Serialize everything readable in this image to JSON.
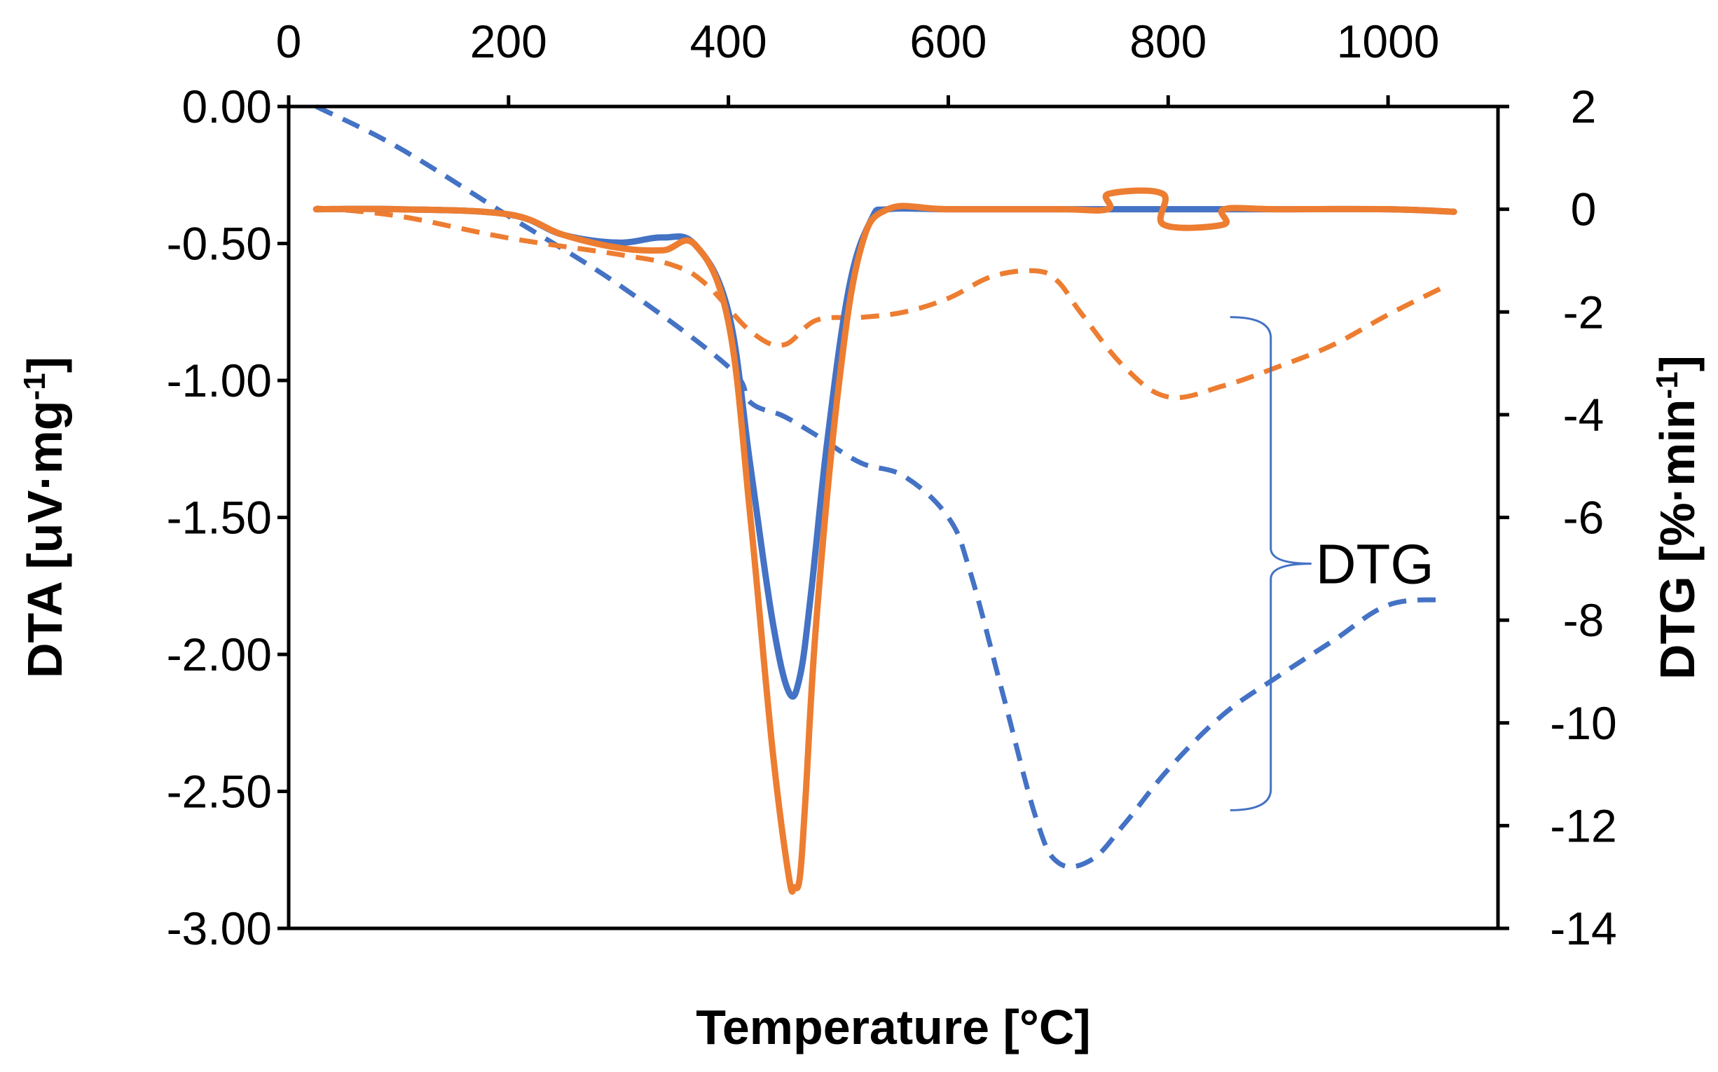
{
  "chart_data": {
    "type": "line",
    "xlabel": "Temperature [°C]",
    "ylabel_left": "DTA [uV·mg-1]",
    "ylabel_left_parts": {
      "main": "DTA [uV·mg",
      "sup": "-1",
      "end": "]"
    },
    "ylabel_right": "DTG [%·min-1]",
    "ylabel_right_parts": {
      "main": "DTG [%·min",
      "sup": "-1",
      "end": "]"
    },
    "xlim": [
      0,
      1100
    ],
    "ylim_left": [
      -3.0,
      0.0
    ],
    "ylim_right": [
      -14,
      2
    ],
    "x_ticks": [
      0,
      200,
      400,
      600,
      800,
      1000
    ],
    "x_tick_labels": [
      "0",
      "200",
      "400",
      "600",
      "800",
      "1000"
    ],
    "y_left_ticks": [
      0.0,
      -0.5,
      -1.0,
      -1.5,
      -2.0,
      -2.5,
      -3.0
    ],
    "y_left_tick_labels": [
      "0.00",
      "-0.50",
      "-1.00",
      "-1.50",
      "-2.00",
      "-2.50",
      "-3.00"
    ],
    "y_right_ticks": [
      2,
      0,
      -2,
      -4,
      -6,
      -8,
      -10,
      -12,
      -14
    ],
    "y_right_tick_labels": [
      "2",
      "0",
      "-2",
      "-4",
      "-6",
      "-8",
      "-10",
      "-12",
      "-14"
    ],
    "grid": false,
    "annotations": [
      {
        "text": "DTG",
        "type": "brace",
        "y_right_range": [
          -11.7,
          -2.1
        ],
        "x": 850
      }
    ],
    "colors": {
      "blue": "#4472C4",
      "orange": "#ED7D31"
    },
    "series": [
      {
        "axis": "right",
        "color": "#4472C4",
        "style": "solid",
        "x": [
          25,
          100,
          200,
          250,
          300,
          340,
          370,
          400,
          420,
          440,
          455,
          465,
          475,
          490,
          510,
          530,
          545,
          600,
          700,
          800,
          900,
          1000,
          1060
        ],
        "y": [
          0,
          0,
          -0.1,
          -0.5,
          -0.65,
          -0.55,
          -0.7,
          -2.0,
          -5.0,
          -8.0,
          -9.4,
          -9.1,
          -7.5,
          -4.5,
          -1.5,
          -0.2,
          0,
          0,
          0,
          0,
          0,
          0,
          -0.05
        ]
      },
      {
        "axis": "right",
        "color": "#ED7D31",
        "style": "solid",
        "x": [
          25,
          100,
          200,
          250,
          300,
          340,
          370,
          400,
          420,
          440,
          455,
          460,
          465,
          470,
          480,
          500,
          520,
          545,
          600,
          700,
          745,
          746,
          795,
          796,
          850,
          851,
          900,
          1000,
          1060
        ],
        "y": [
          0,
          0,
          -0.1,
          -0.5,
          -0.75,
          -0.8,
          -0.7,
          -2.2,
          -6.0,
          -10.5,
          -13.0,
          -13.2,
          -13.0,
          -11.5,
          -8.0,
          -3.5,
          -0.8,
          0,
          0,
          0,
          0,
          0.3,
          0.3,
          -0.3,
          -0.3,
          0,
          0,
          0,
          -0.05
        ]
      },
      {
        "axis": "left",
        "color": "#4472C4",
        "style": "dashed",
        "x": [
          25,
          100,
          200,
          300,
          400,
          420,
          450,
          480,
          520,
          560,
          600,
          620,
          650,
          680,
          700,
          730,
          760,
          800,
          850,
          900,
          950,
          1000,
          1050
        ],
        "y": [
          0.0,
          -0.15,
          -0.4,
          -0.65,
          -0.95,
          -1.08,
          -1.13,
          -1.2,
          -1.3,
          -1.35,
          -1.5,
          -1.7,
          -2.15,
          -2.6,
          -2.76,
          -2.75,
          -2.62,
          -2.42,
          -2.22,
          -2.08,
          -1.95,
          -1.82,
          -1.8
        ]
      },
      {
        "axis": "left",
        "color": "#ED7D31",
        "style": "dashed",
        "x": [
          25,
          100,
          200,
          300,
          350,
          380,
          420,
          450,
          480,
          520,
          560,
          600,
          640,
          680,
          700,
          720,
          760,
          800,
          850,
          900,
          950,
          1000,
          1050
        ],
        "y": [
          -0.37,
          -0.4,
          -0.48,
          -0.54,
          -0.58,
          -0.65,
          -0.82,
          -0.87,
          -0.78,
          -0.77,
          -0.75,
          -0.7,
          -0.62,
          -0.6,
          -0.64,
          -0.75,
          -0.95,
          -1.06,
          -1.02,
          -0.95,
          -0.87,
          -0.76,
          -0.66
        ]
      }
    ]
  }
}
